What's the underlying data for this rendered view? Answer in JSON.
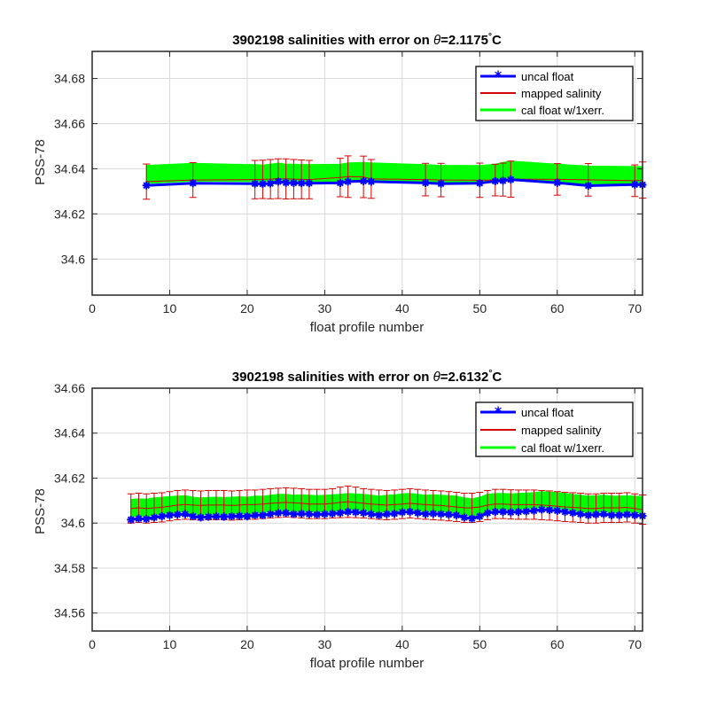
{
  "colors": {
    "uncal": "#0000ff",
    "mapped": "#d40000",
    "cal": "#00ff00",
    "grid": "#d9d9d9",
    "axis": "#262626"
  },
  "chart_data": [
    {
      "type": "line",
      "title": "3902198 salinities with error on θ=2.1175°C",
      "title_prefix": "3902198 salinities with error on ",
      "theta_symbol": "θ",
      "title_value": "=2.1175",
      "degree_symbol": "°",
      "title_unit": "C",
      "xlabel": "float profile number",
      "ylabel": "PSS-78",
      "xlim": [
        0,
        71
      ],
      "ylim": [
        34.584,
        34.692
      ],
      "xticks": [
        0,
        10,
        20,
        30,
        40,
        50,
        60,
        70
      ],
      "yticks": [
        34.6,
        34.62,
        34.64,
        34.66,
        34.68
      ],
      "ytick_labels": [
        "34.6",
        "34.62",
        "34.64",
        "34.66",
        "34.68"
      ],
      "grid": true,
      "legend": {
        "position": "top-right",
        "entries": [
          "uncal float",
          "mapped salinity",
          "cal float w/1xerr."
        ]
      },
      "x": [
        7,
        13,
        21,
        22,
        23,
        24,
        25,
        26,
        27,
        28,
        32,
        33,
        35,
        36,
        43,
        45,
        50,
        52,
        53,
        54,
        60,
        64,
        70,
        71
      ],
      "series": [
        {
          "name": "uncal float",
          "values": [
            34.6326,
            34.6336,
            34.6334,
            34.6333,
            34.6335,
            34.6343,
            34.6338,
            34.6337,
            34.6336,
            34.6336,
            34.6337,
            34.6343,
            34.6345,
            34.6343,
            34.6337,
            34.6334,
            34.6336,
            34.6345,
            34.6347,
            34.6352,
            34.6338,
            34.6325,
            34.633,
            34.6329
          ]
        },
        {
          "name": "mapped salinity",
          "values": [
            34.6343,
            34.635,
            34.6352,
            34.6353,
            34.6354,
            34.6356,
            34.6355,
            34.6354,
            34.6353,
            34.6352,
            34.6361,
            34.6365,
            34.6364,
            34.6355,
            34.6352,
            34.635,
            34.6349,
            34.635,
            34.6352,
            34.6354,
            34.6353,
            34.6351,
            34.6347,
            34.635
          ],
          "error": [
            0.0078,
            0.0077,
            0.0085,
            0.0085,
            0.0087,
            0.0088,
            0.0089,
            0.0087,
            0.0086,
            0.0085,
            0.0085,
            0.0092,
            0.0092,
            0.0086,
            0.0072,
            0.0074,
            0.0076,
            0.007,
            0.0073,
            0.008,
            0.007,
            0.0072,
            0.007,
            0.008
          ]
        },
        {
          "name": "cal float w/1xerr.",
          "lower": [
            34.6335,
            34.6345,
            34.6343,
            34.6342,
            34.6345,
            34.6352,
            34.6346,
            34.6345,
            34.6344,
            34.6344,
            34.6343,
            34.6349,
            34.635,
            34.6348,
            34.6342,
            34.6338,
            34.6339,
            34.6347,
            34.6348,
            34.6352,
            34.634,
            34.6333,
            34.6336,
            34.6336
          ],
          "upper": [
            34.6415,
            34.6424,
            34.6418,
            34.6417,
            34.642,
            34.6425,
            34.6421,
            34.642,
            34.6419,
            34.6419,
            34.642,
            34.6426,
            34.6428,
            34.6426,
            34.6418,
            34.6415,
            34.6414,
            34.642,
            34.6428,
            34.6434,
            34.642,
            34.6412,
            34.641,
            34.641
          ]
        }
      ]
    },
    {
      "type": "line",
      "title": "3902198 salinities with error on θ=2.6132°C",
      "title_prefix": "3902198 salinities with error on ",
      "theta_symbol": "θ",
      "title_value": "=2.6132",
      "degree_symbol": "°",
      "title_unit": "C",
      "xlabel": "float profile number",
      "ylabel": "PSS-78",
      "xlim": [
        0,
        71
      ],
      "ylim": [
        34.552,
        34.66
      ],
      "xticks": [
        0,
        10,
        20,
        30,
        40,
        50,
        60,
        70
      ],
      "yticks": [
        34.56,
        34.58,
        34.6,
        34.62,
        34.64,
        34.66
      ],
      "ytick_labels": [
        "34.56",
        "34.58",
        "34.6",
        "34.62",
        "34.64",
        "34.66"
      ],
      "grid": true,
      "legend": {
        "position": "top-right",
        "entries": [
          "uncal float",
          "mapped salinity",
          "cal float w/1xerr."
        ]
      },
      "x": [
        5,
        6,
        7,
        8,
        9,
        10,
        11,
        12,
        13,
        14,
        15,
        16,
        17,
        18,
        19,
        20,
        21,
        22,
        23,
        24,
        25,
        26,
        27,
        28,
        29,
        30,
        31,
        32,
        33,
        34,
        35,
        36,
        37,
        38,
        39,
        40,
        41,
        42,
        43,
        44,
        45,
        46,
        47,
        48,
        49,
        50,
        51,
        52,
        53,
        54,
        55,
        56,
        57,
        58,
        59,
        60,
        61,
        62,
        63,
        64,
        65,
        66,
        67,
        68,
        69,
        70,
        71
      ],
      "series": [
        {
          "name": "uncal float",
          "values": [
            34.6015,
            34.602,
            34.6018,
            34.6025,
            34.603,
            34.6035,
            34.6038,
            34.604,
            34.603,
            34.6025,
            34.6028,
            34.603,
            34.6028,
            34.603,
            34.6032,
            34.603,
            34.6035,
            34.6035,
            34.604,
            34.6045,
            34.6045,
            34.604,
            34.6042,
            34.604,
            34.6038,
            34.604,
            34.6042,
            34.6045,
            34.605,
            34.6048,
            34.6045,
            34.604,
            34.6035,
            34.604,
            34.6042,
            34.6048,
            34.605,
            34.6045,
            34.604,
            34.6042,
            34.604,
            34.6038,
            34.6035,
            34.6025,
            34.602,
            34.603,
            34.6045,
            34.605,
            34.605,
            34.6048,
            34.605,
            34.6052,
            34.6055,
            34.606,
            34.6058,
            34.6055,
            34.605,
            34.6045,
            34.604,
            34.6035,
            34.6038,
            34.604,
            34.6035,
            34.6035,
            34.6038,
            34.6035,
            34.6032
          ]
        },
        {
          "name": "mapped salinity",
          "values": [
            34.6065,
            34.6068,
            34.6065,
            34.6068,
            34.607,
            34.6075,
            34.608,
            34.6082,
            34.608,
            34.6078,
            34.608,
            34.608,
            34.608,
            34.6078,
            34.608,
            34.6082,
            34.6082,
            34.6085,
            34.6088,
            34.609,
            34.6092,
            34.609,
            34.6088,
            34.6085,
            34.6085,
            34.6085,
            34.6088,
            34.6092,
            34.6095,
            34.6092,
            34.6088,
            34.6085,
            34.6082,
            34.608,
            34.6082,
            34.6085,
            34.6088,
            34.6085,
            34.6082,
            34.608,
            34.6078,
            34.6075,
            34.6072,
            34.6068,
            34.6068,
            34.6072,
            34.608,
            34.6085,
            34.6085,
            34.6083,
            34.6082,
            34.6082,
            34.6082,
            34.608,
            34.6078,
            34.6075,
            34.6072,
            34.607,
            34.6068,
            34.6065,
            34.6065,
            34.6068,
            34.6068,
            34.6068,
            34.607,
            34.6065,
            34.606
          ],
          "error": [
            0.0065,
            0.0065,
            0.0065,
            0.0065,
            0.0065,
            0.0065,
            0.0065,
            0.0065,
            0.0065,
            0.0065,
            0.0065,
            0.0065,
            0.0065,
            0.0065,
            0.0065,
            0.0065,
            0.0065,
            0.0065,
            0.0065,
            0.0065,
            0.0065,
            0.0065,
            0.0065,
            0.0065,
            0.0065,
            0.0065,
            0.0065,
            0.0068,
            0.007,
            0.0068,
            0.0065,
            0.0065,
            0.0065,
            0.0065,
            0.0065,
            0.0065,
            0.0065,
            0.0065,
            0.0065,
            0.0065,
            0.0065,
            0.0065,
            0.0065,
            0.0065,
            0.0065,
            0.0065,
            0.0065,
            0.0065,
            0.0065,
            0.0065,
            0.0065,
            0.0065,
            0.0065,
            0.0065,
            0.0065,
            0.0065,
            0.0065,
            0.0065,
            0.0065,
            0.0065,
            0.0065,
            0.0065,
            0.0065,
            0.0065,
            0.0065,
            0.0065,
            0.0065
          ]
        },
        {
          "name": "cal float w/1xerr.",
          "lower": [
            34.6028,
            34.6032,
            34.603,
            34.6036,
            34.604,
            34.6045,
            34.6048,
            34.605,
            34.604,
            34.6036,
            34.6038,
            34.604,
            34.6038,
            34.604,
            34.6042,
            34.604,
            34.6045,
            34.6046,
            34.605,
            34.6055,
            34.6055,
            34.605,
            34.6052,
            34.605,
            34.6048,
            34.605,
            34.6052,
            34.6055,
            34.606,
            34.6058,
            34.6055,
            34.605,
            34.6045,
            34.605,
            34.6052,
            34.6058,
            34.606,
            34.6055,
            34.605,
            34.6052,
            34.605,
            34.6048,
            34.6045,
            34.6036,
            34.6032,
            34.604,
            34.6055,
            34.606,
            34.606,
            34.6058,
            34.606,
            34.6062,
            34.6065,
            34.607,
            34.6068,
            34.6065,
            34.606,
            34.6055,
            34.605,
            34.6046,
            34.6048,
            34.605,
            34.6046,
            34.6046,
            34.6048,
            34.6046,
            34.6043
          ],
          "upper": [
            34.6105,
            34.6108,
            34.6106,
            34.6112,
            34.6115,
            34.6118,
            34.612,
            34.6122,
            34.6115,
            34.6112,
            34.6114,
            34.6115,
            34.6114,
            34.6115,
            34.6117,
            34.6115,
            34.612,
            34.612,
            34.6124,
            34.6128,
            34.6128,
            34.6124,
            34.6126,
            34.6124,
            34.6122,
            34.6124,
            34.6126,
            34.6128,
            34.6132,
            34.613,
            34.6128,
            34.6124,
            34.612,
            34.6124,
            34.6126,
            34.613,
            34.6132,
            34.6128,
            34.6124,
            34.6126,
            34.6124,
            34.6122,
            34.612,
            34.6112,
            34.6108,
            34.6115,
            34.6128,
            34.6132,
            34.6132,
            34.613,
            34.6132,
            34.6134,
            34.6136,
            34.614,
            34.6138,
            34.6136,
            34.6132,
            34.6128,
            34.6124,
            34.612,
            34.6122,
            34.6124,
            34.612,
            34.612,
            34.6122,
            34.612,
            34.6118
          ]
        }
      ]
    }
  ]
}
